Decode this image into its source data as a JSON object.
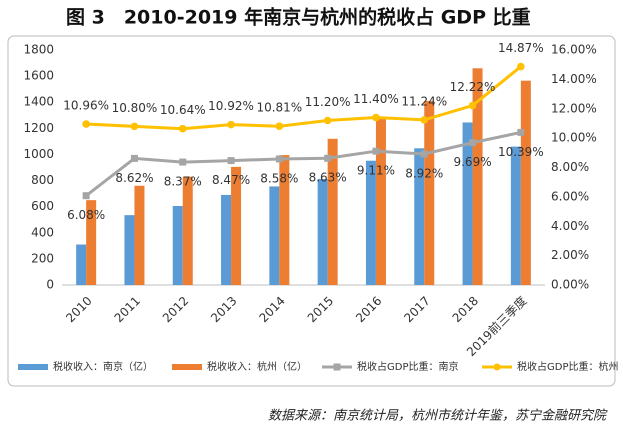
{
  "chart_data": {
    "type": "bar",
    "title": "图 3　2010-2019 年南京与杭州的税收占 GDP 比重",
    "source": "数据来源：南京统计局，杭州市统计年鉴，苏宁金融研究院",
    "categories": [
      "2010",
      "2011",
      "2012",
      "2013",
      "2014",
      "2015",
      "2016",
      "2017",
      "2018",
      "2019前三季度"
    ],
    "series": [
      {
        "name": "税收收入：南京（亿）",
        "type": "bar",
        "color": "#5b9bd5",
        "values": [
          310,
          535,
          605,
          690,
          755,
          812,
          952,
          1047,
          1245,
          1060
        ]
      },
      {
        "name": "税收收入：杭州（亿）",
        "type": "bar",
        "color": "#ed7d31",
        "values": [
          650,
          760,
          830,
          905,
          995,
          1120,
          1280,
          1410,
          1660,
          1565
        ]
      },
      {
        "name": "税收占GDP比重：南京",
        "type": "line",
        "axis": "y2",
        "color": "#a5a5a5",
        "marker": "square",
        "label_pos": "below",
        "values": [
          6.08,
          8.62,
          8.37,
          8.47,
          8.58,
          8.63,
          9.11,
          8.92,
          9.69,
          10.39
        ],
        "value_labels": [
          "6.08%",
          "8.62%",
          "8.37%",
          "8.47%",
          "8.58%",
          "8.63%",
          "9.11%",
          "8.92%",
          "9.69%",
          "10.39%"
        ]
      },
      {
        "name": "税收占GDP比重：杭州",
        "type": "line",
        "axis": "y2",
        "color": "#ffc000",
        "marker": "circle",
        "label_pos": "above",
        "values": [
          10.96,
          10.8,
          10.64,
          10.92,
          10.81,
          11.2,
          11.4,
          11.24,
          12.22,
          14.87
        ],
        "value_labels": [
          "10.96%",
          "10.80%",
          "10.64%",
          "10.92%",
          "10.81%",
          "11.20%",
          "11.40%",
          "11.24%",
          "12.22%",
          "14.87%"
        ]
      }
    ],
    "ylim": [
      0,
      1800
    ],
    "yticks": [
      0,
      200,
      400,
      600,
      800,
      1000,
      1200,
      1400,
      1600,
      1800
    ],
    "y2lim": [
      0,
      16
    ],
    "y2ticks": [
      {
        "value": 0,
        "label": "0.00%"
      },
      {
        "value": 2,
        "label": "2.00%"
      },
      {
        "value": 4,
        "label": "4.00%"
      },
      {
        "value": 6,
        "label": "6.00%"
      },
      {
        "value": 8,
        "label": "8.00%"
      },
      {
        "value": 10,
        "label": "10.00%"
      },
      {
        "value": 12,
        "label": "12.00%"
      },
      {
        "value": 14,
        "label": "14.00%"
      },
      {
        "value": 16,
        "label": "16.00%"
      }
    ],
    "grid": false,
    "legend": "bottom"
  }
}
